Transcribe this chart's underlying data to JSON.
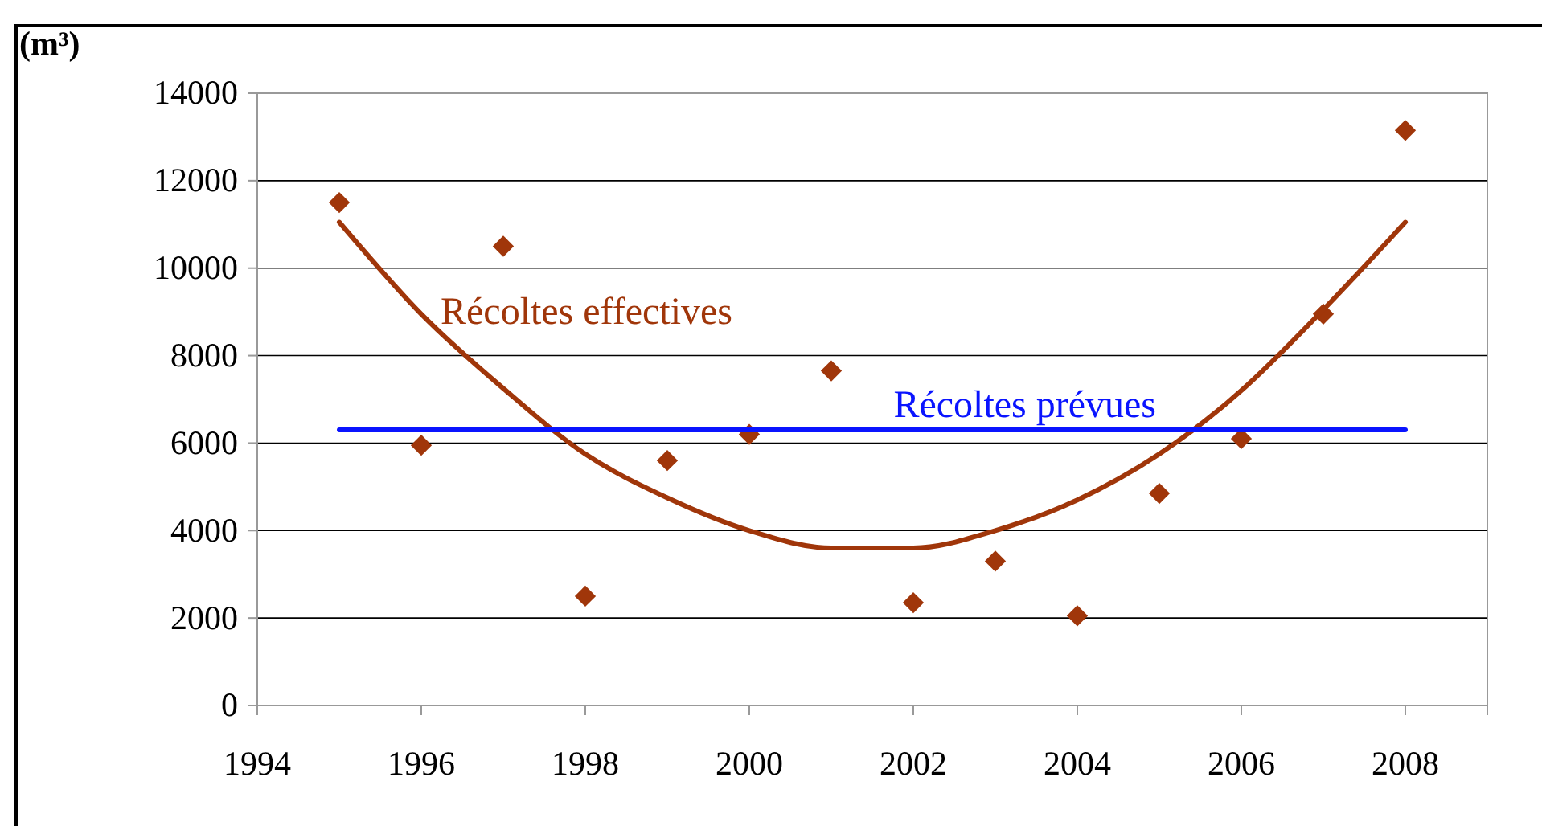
{
  "chart_data": {
    "type": "scatter",
    "ylabel": "(m³)",
    "xlim": [
      1994,
      2009
    ],
    "xticks": [
      1994,
      1996,
      1998,
      2000,
      2002,
      2004,
      2006,
      2008
    ],
    "ylim": [
      0,
      14000
    ],
    "yticks": [
      0,
      2000,
      4000,
      6000,
      8000,
      10000,
      12000,
      14000
    ],
    "grid": "y",
    "marker": "diamond",
    "series": [
      {
        "color": "#a0360a",
        "x": [
          1995,
          1996,
          1997,
          1998,
          1999,
          2000,
          2001,
          2002,
          2003,
          2004,
          2005,
          2006,
          2007,
          2008
        ],
        "values": [
          11500,
          5950,
          10500,
          2500,
          5600,
          6200,
          7650,
          2350,
          3300,
          2050,
          4850,
          6100,
          8950,
          13150
        ]
      },
      {
        "type": "line",
        "marker": "none",
        "name": "Récoltes effectives",
        "color": "#a0360a",
        "x": [
          1995,
          1996,
          1997,
          1998,
          1999,
          2000,
          2001,
          2002,
          2003,
          2004,
          2005,
          2006,
          2007,
          2008
        ],
        "values": [
          11050,
          8950,
          7250,
          5750,
          4750,
          4000,
          3600,
          3600,
          4000,
          4700,
          5750,
          7200,
          9050,
          11050
        ]
      },
      {
        "type": "line",
        "marker": "none",
        "name": "Récoltes prévues",
        "color": "#0a14ff",
        "x": [
          1995,
          2008
        ],
        "values": [
          6300,
          6300
        ]
      }
    ]
  }
}
